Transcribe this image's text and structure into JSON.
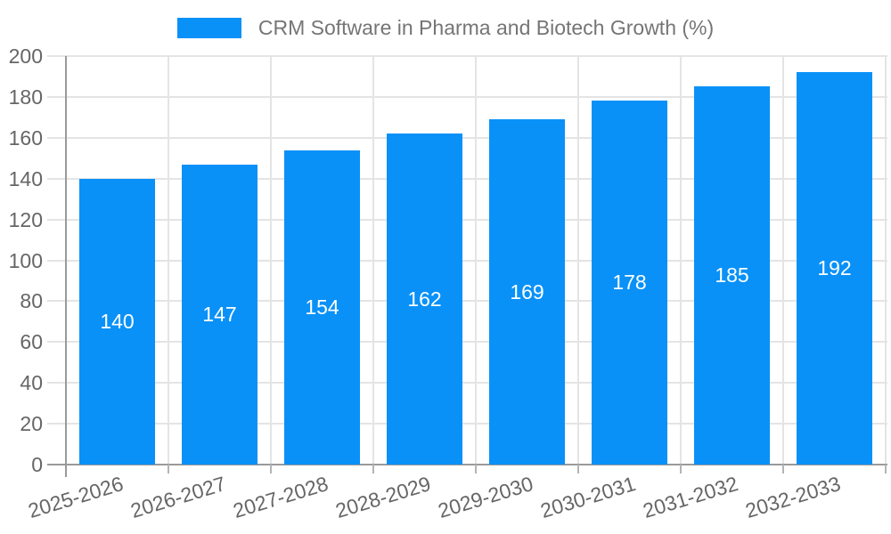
{
  "chart_data": {
    "type": "bar",
    "title": "CRM Software in Pharma and Biotech Growth (%)",
    "categories": [
      "2025-2026",
      "2026-2027",
      "2027-2028",
      "2028-2029",
      "2029-2030",
      "2030-2031",
      "2031-2032",
      "2032-2033"
    ],
    "series": [
      {
        "name": "CRM Software in Pharma and Biotech Growth (%)",
        "values": [
          140,
          147,
          154,
          162,
          169,
          178,
          185,
          192
        ]
      }
    ],
    "values": [
      140,
      147,
      154,
      162,
      169,
      178,
      185,
      192
    ],
    "bar_value_labels": [
      "140",
      "147",
      "154",
      "162",
      "169",
      "178",
      "185",
      "192"
    ],
    "xlabel": "",
    "ylabel": "",
    "ylim": [
      0,
      200
    ],
    "ytick_step": 20,
    "ytick_labels": [
      "0",
      "20",
      "40",
      "60",
      "80",
      "100",
      "120",
      "140",
      "160",
      "180",
      "200"
    ],
    "grid": true,
    "legend_position": "top-center",
    "x_label_rotation_deg": -17,
    "bar_color": "#0991f8",
    "bar_label_color": "#ffffff"
  },
  "colors": {
    "background": "#ffffff",
    "gridline": "#e4e4e4",
    "axis_line": "#9a9a9a",
    "x_tick_stub": "#b4b4b4",
    "tick_label_text": "#666666",
    "legend_text": "#757575"
  }
}
